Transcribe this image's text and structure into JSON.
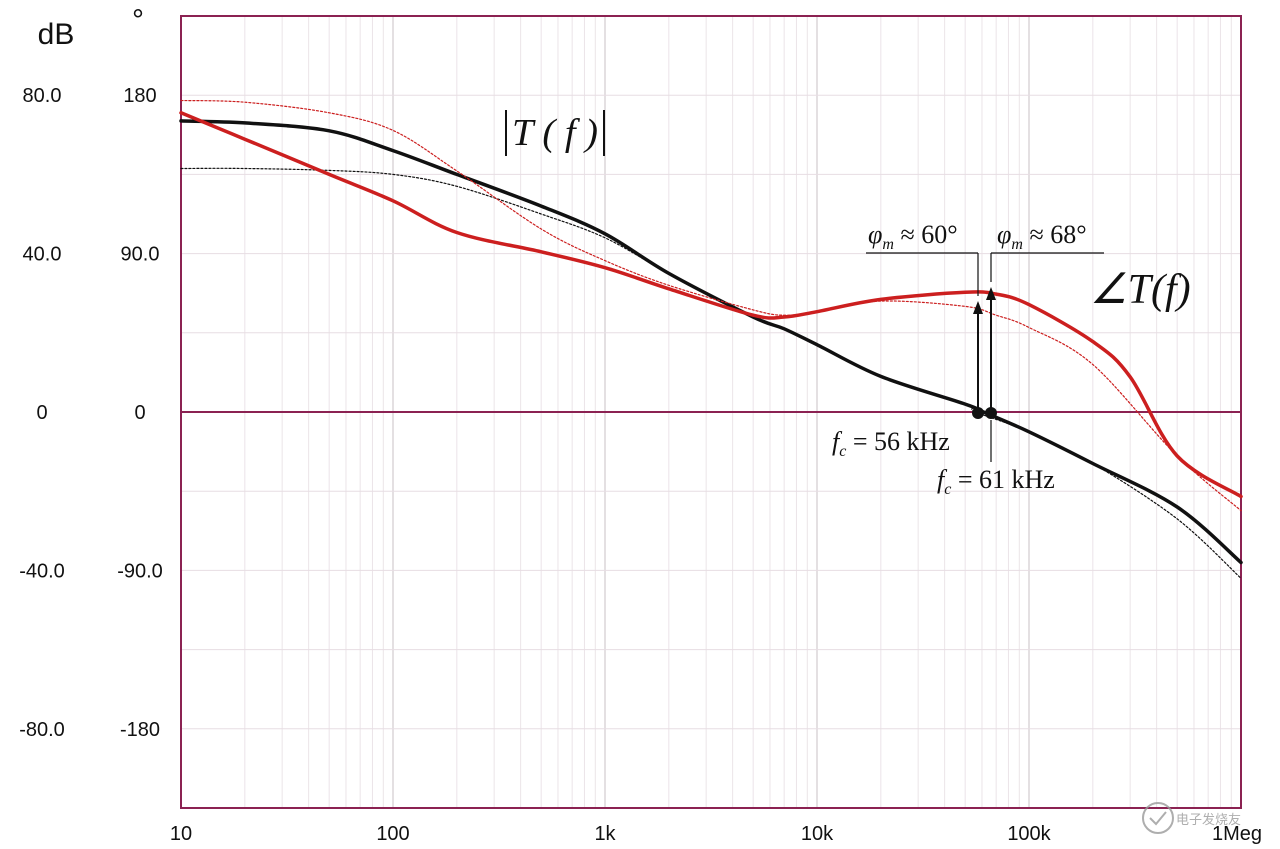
{
  "chart_data": {
    "type": "line",
    "x_scale": "log",
    "x_ticks": [
      "10",
      "100",
      "1k",
      "10k",
      "100k",
      "1Meg"
    ],
    "xlim": [
      10,
      1000000
    ],
    "y_left": {
      "unit": "dB",
      "ticks": [
        "80.0",
        "40.0",
        "0",
        "-40.0",
        "-80.0"
      ],
      "ylim": [
        -100,
        100
      ]
    },
    "y_right": {
      "unit": "°",
      "ticks": [
        "180",
        "90.0",
        "0",
        "-90.0",
        "-180"
      ],
      "ylim": [
        -225,
        225
      ]
    },
    "grid": true,
    "series": [
      {
        "name": "|T(f)|",
        "axis": "left",
        "style": "solid",
        "color": "#111111",
        "x": [
          10,
          20,
          50,
          100,
          200,
          500,
          1000,
          2000,
          5000,
          7000,
          10000,
          20000,
          50000,
          61000,
          100000,
          200000,
          500000,
          1000000
        ],
        "y": [
          73.5,
          73,
          71,
          66,
          60,
          52,
          45,
          35,
          24,
          21,
          17,
          9,
          2,
          0,
          -5,
          -13,
          -24,
          -38
        ]
      },
      {
        "name": "|T(f)|",
        "axis": "left",
        "style": "dotted",
        "color": "#111111",
        "x": [
          10,
          20,
          50,
          100,
          200,
          500,
          1000,
          2000,
          5000,
          7000,
          10000,
          20000,
          50000,
          56000,
          100000,
          200000,
          500000,
          1000000
        ],
        "y": [
          61.5,
          61.5,
          61,
          60,
          57,
          50,
          44,
          35,
          24,
          21,
          17,
          9,
          2,
          0,
          -5,
          -13,
          -27,
          -42
        ]
      },
      {
        "name": "∠T(f)",
        "axis": "right",
        "style": "solid",
        "color": "#cc1f1f",
        "x": [
          10,
          20,
          50,
          100,
          200,
          500,
          1000,
          2000,
          5000,
          7000,
          10000,
          20000,
          50000,
          70000,
          100000,
          200000,
          300000,
          500000,
          1000000
        ],
        "y": [
          170,
          155,
          135,
          120,
          102,
          91,
          82,
          70,
          55,
          54,
          57,
          64,
          68,
          67,
          61,
          40,
          20,
          -25,
          -48
        ]
      },
      {
        "name": "∠T(f)",
        "axis": "right",
        "style": "dotted",
        "color": "#cc1f1f",
        "x": [
          10,
          20,
          50,
          100,
          200,
          500,
          1000,
          2000,
          5000,
          7000,
          10000,
          20000,
          50000,
          70000,
          100000,
          200000,
          500000,
          1000000
        ],
        "y": [
          177,
          176,
          170,
          160,
          137,
          104,
          86,
          72,
          58,
          55,
          57,
          63,
          60,
          55,
          48,
          27,
          -25,
          -56
        ]
      }
    ],
    "annotations": {
      "mag_label": "|T(f)|",
      "phase_label": "∠T(f)",
      "pm1": {
        "phi": "φ",
        "sub": "m",
        "text": " ≈ 60°"
      },
      "pm2": {
        "phi": "φ",
        "sub": "m",
        "text": " ≈ 68°"
      },
      "fc1": {
        "f": "f",
        "sub": "c",
        "text": " = 56 kHz"
      },
      "fc2": {
        "f": "f",
        "sub": "c",
        "text": " = 61 kHz"
      }
    }
  },
  "watermark": "电子发烧友"
}
